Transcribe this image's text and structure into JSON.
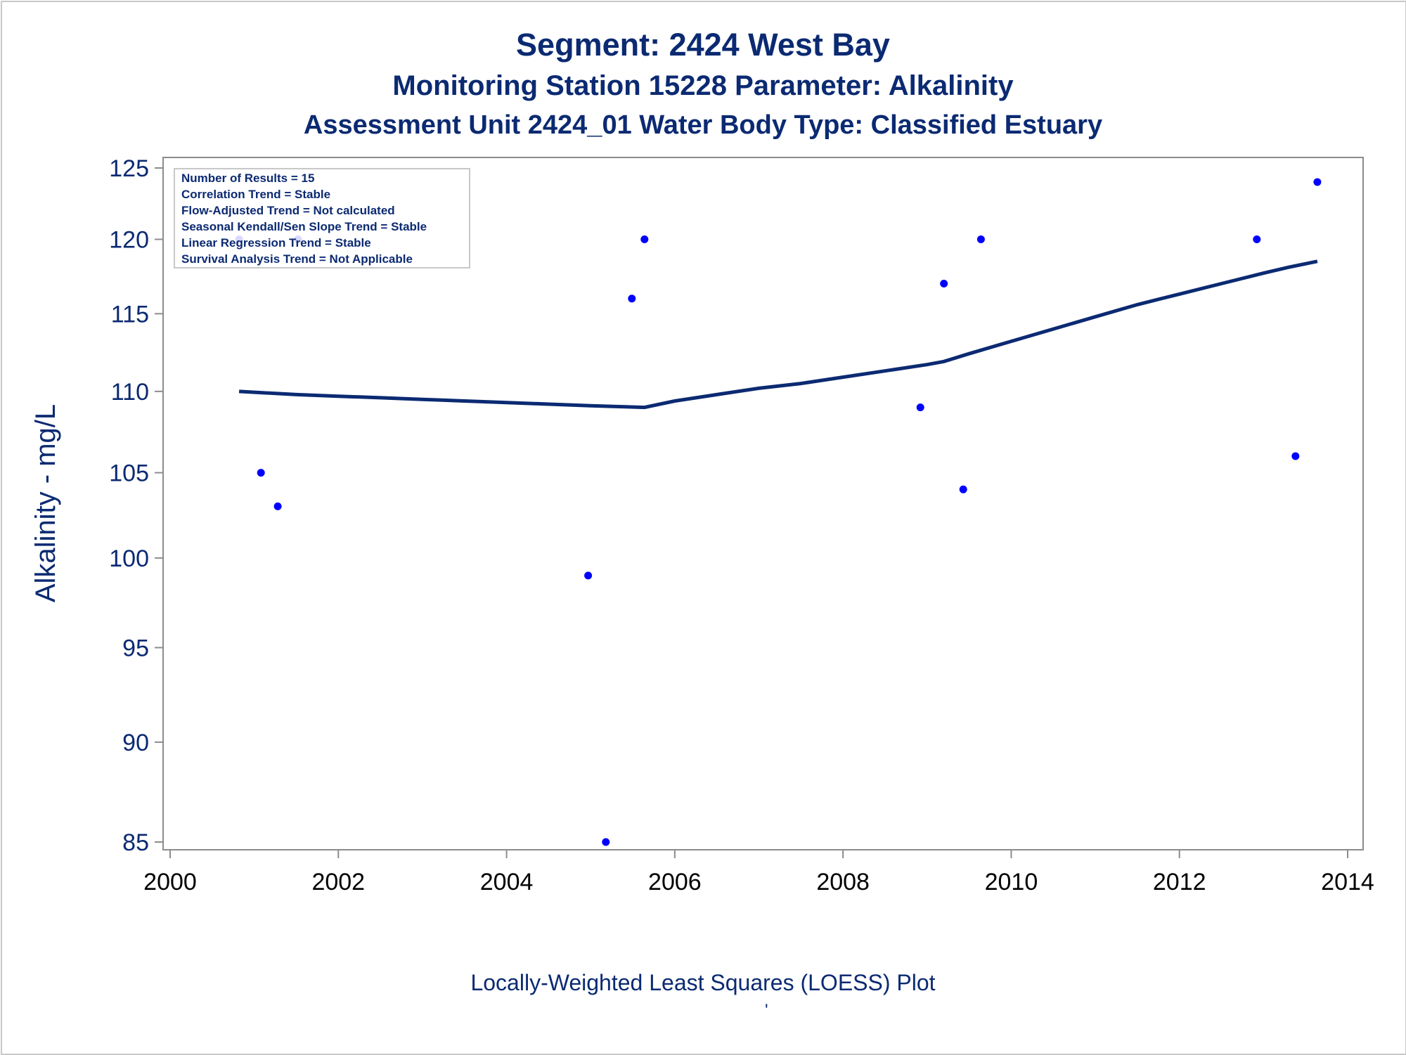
{
  "titles": {
    "line1": "Segment: 2424  West Bay",
    "line2": "Monitoring Station 15228 Parameter: Alkalinity",
    "line3": "Assessment Unit 2424_01   Water Body Type: Classified Estuary"
  },
  "footnote": "Locally-Weighted Least Squares (LOESS) Plot",
  "footnote_mark": "'",
  "inset": {
    "lines": [
      "Number of Results = 15",
      "Correlation Trend = Stable",
      "Flow-Adjusted Trend = Not calculated",
      "Seasonal Kendall/Sen Slope Trend = Stable",
      "Linear Regression Trend = Stable",
      "Survival Analysis Trend = Not Applicable"
    ]
  },
  "colors": {
    "text": "#0b2a72",
    "points": "#0000ff",
    "loess_line": "#0b2a72",
    "frame": "#8c8c8c"
  },
  "chart_data": {
    "type": "scatter",
    "title": "Segment: 2424  West Bay",
    "xlabel": "",
    "ylabel": "Alkalinity - mg/L",
    "xlim": [
      2000,
      2014
    ],
    "ylim": [
      85,
      125
    ],
    "y_scale": "log",
    "xticks": [
      2000,
      2002,
      2004,
      2006,
      2008,
      2010,
      2012,
      2014
    ],
    "yticks": [
      85,
      90,
      95,
      100,
      105,
      110,
      115,
      120,
      125
    ],
    "grid": false,
    "series": [
      {
        "kind": "scatter",
        "x": [
          2000.82,
          2001.08,
          2001.28,
          2001.52,
          2004.97,
          2005.18,
          2005.49,
          2005.64,
          2008.92,
          2009.2,
          2009.43,
          2009.64,
          2012.92,
          2013.38,
          2013.64
        ],
        "y": [
          120,
          105,
          103,
          120,
          99,
          85,
          116,
          120,
          109,
          117,
          104,
          120,
          120,
          106,
          124
        ]
      },
      {
        "kind": "line",
        "x": [
          2000.82,
          2001.5,
          2002,
          2002.5,
          2003,
          2003.5,
          2004,
          2004.5,
          2005,
          2005.3,
          2005.64,
          2006,
          2006.5,
          2007,
          2007.5,
          2008,
          2008.5,
          2009,
          2009.2,
          2009.5,
          2010,
          2010.5,
          2011,
          2011.5,
          2012,
          2012.5,
          2013,
          2013.3,
          2013.64
        ],
        "y": [
          110.0,
          109.8,
          109.7,
          109.6,
          109.5,
          109.4,
          109.3,
          109.2,
          109.1,
          109.05,
          109.0,
          109.4,
          109.8,
          110.2,
          110.5,
          110.9,
          111.3,
          111.7,
          111.9,
          112.4,
          113.2,
          114.0,
          114.8,
          115.6,
          116.3,
          117.0,
          117.7,
          118.1,
          118.5
        ]
      }
    ]
  }
}
